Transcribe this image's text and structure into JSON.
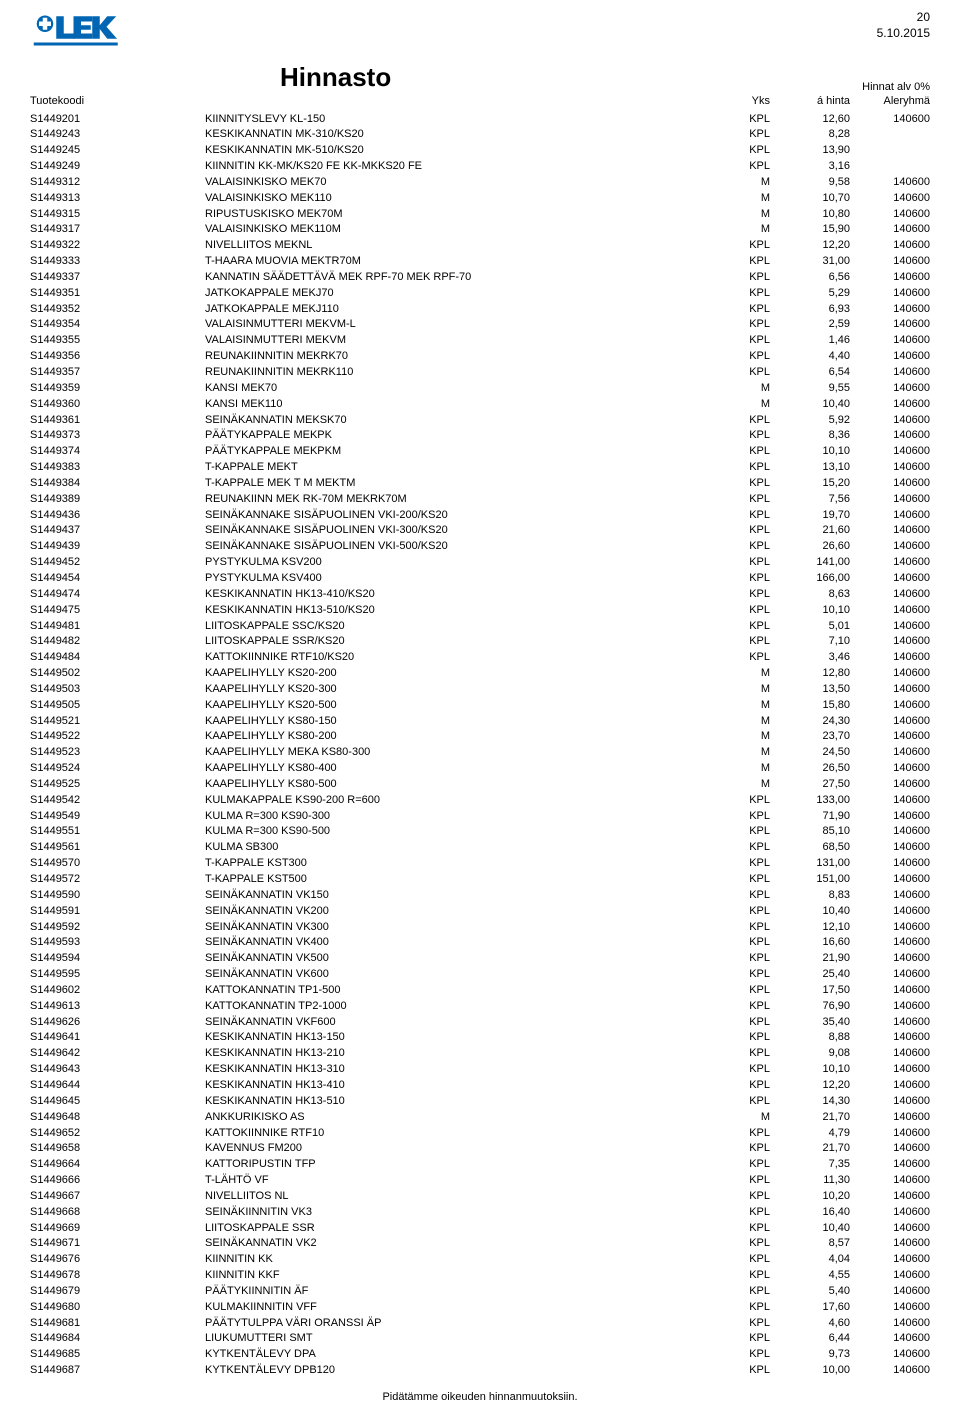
{
  "page_number": "20",
  "date": "5.10.2015",
  "title": "Hinnasto",
  "vat_note": "Hinnat alv 0%",
  "headers": {
    "tuotekoodi": "Tuotekoodi",
    "yks": "Yks",
    "hinta": "á hinta",
    "aleryhma": "Aleryhmä"
  },
  "footer": "Pidätämme oikeuden hinnanmuutoksiin.",
  "logo_color": "#0066b3",
  "rows": [
    {
      "code": "S1449201",
      "desc": "KIINNITYSLEVY KL-150",
      "yks": "KPL",
      "hinta": "12,60",
      "aler": "140600"
    },
    {
      "code": "S1449243",
      "desc": "KESKIKANNATIN MK-310/KS20",
      "yks": "KPL",
      "hinta": "8,28",
      "aler": ""
    },
    {
      "code": "S1449245",
      "desc": "KESKIKANNATIN MK-510/KS20",
      "yks": "KPL",
      "hinta": "13,90",
      "aler": ""
    },
    {
      "code": "S1449249",
      "desc": "KIINNITIN KK-MK/KS20 FE KK-MKKS20 FE",
      "yks": "KPL",
      "hinta": "3,16",
      "aler": ""
    },
    {
      "code": "S1449312",
      "desc": "VALAISINKISKO MEK70",
      "yks": "M",
      "hinta": "9,58",
      "aler": "140600"
    },
    {
      "code": "S1449313",
      "desc": "VALAISINKISKO MEK110",
      "yks": "M",
      "hinta": "10,70",
      "aler": "140600"
    },
    {
      "code": "S1449315",
      "desc": "RIPUSTUSKISKO MEK70M",
      "yks": "M",
      "hinta": "10,80",
      "aler": "140600"
    },
    {
      "code": "S1449317",
      "desc": "VALAISINKISKO MEK110M",
      "yks": "M",
      "hinta": "15,90",
      "aler": "140600"
    },
    {
      "code": "S1449322",
      "desc": "NIVELLIITOS MEKNL",
      "yks": "KPL",
      "hinta": "12,20",
      "aler": "140600"
    },
    {
      "code": "S1449333",
      "desc": "T-HAARA MUOVIA MEKTR70M",
      "yks": "KPL",
      "hinta": "31,00",
      "aler": "140600"
    },
    {
      "code": "S1449337",
      "desc": "KANNATIN SÄÄDETTÄVÄ MEK RPF-70 MEK RPF-70",
      "yks": "KPL",
      "hinta": "6,56",
      "aler": "140600"
    },
    {
      "code": "S1449351",
      "desc": "JATKOKAPPALE MEKJ70",
      "yks": "KPL",
      "hinta": "5,29",
      "aler": "140600"
    },
    {
      "code": "S1449352",
      "desc": "JATKOKAPPALE MEKJ110",
      "yks": "KPL",
      "hinta": "6,93",
      "aler": "140600"
    },
    {
      "code": "S1449354",
      "desc": "VALAISINMUTTERI MEKVM-L",
      "yks": "KPL",
      "hinta": "2,59",
      "aler": "140600"
    },
    {
      "code": "S1449355",
      "desc": "VALAISINMUTTERI MEKVM",
      "yks": "KPL",
      "hinta": "1,46",
      "aler": "140600"
    },
    {
      "code": "S1449356",
      "desc": "REUNAKIINNITIN MEKRK70",
      "yks": "KPL",
      "hinta": "4,40",
      "aler": "140600"
    },
    {
      "code": "S1449357",
      "desc": "REUNAKIINNITIN MEKRK110",
      "yks": "KPL",
      "hinta": "6,54",
      "aler": "140600"
    },
    {
      "code": "S1449359",
      "desc": "KANSI MEK70",
      "yks": "M",
      "hinta": "9,55",
      "aler": "140600"
    },
    {
      "code": "S1449360",
      "desc": "KANSI MEK110",
      "yks": "M",
      "hinta": "10,40",
      "aler": "140600"
    },
    {
      "code": "S1449361",
      "desc": "SEINÄKANNATIN MEKSK70",
      "yks": "KPL",
      "hinta": "5,92",
      "aler": "140600"
    },
    {
      "code": "S1449373",
      "desc": "PÄÄTYKAPPALE MEKPK",
      "yks": "KPL",
      "hinta": "8,36",
      "aler": "140600"
    },
    {
      "code": "S1449374",
      "desc": "PÄÄTYKAPPALE MEKPKM",
      "yks": "KPL",
      "hinta": "10,10",
      "aler": "140600"
    },
    {
      "code": "S1449383",
      "desc": "T-KAPPALE MEKT",
      "yks": "KPL",
      "hinta": "13,10",
      "aler": "140600"
    },
    {
      "code": "S1449384",
      "desc": "T-KAPPALE MEK T M MEKTM",
      "yks": "KPL",
      "hinta": "15,20",
      "aler": "140600"
    },
    {
      "code": "S1449389",
      "desc": "REUNAKIINN MEK RK-70M MEKRK70M",
      "yks": "KPL",
      "hinta": "7,56",
      "aler": "140600"
    },
    {
      "code": "S1449436",
      "desc": "SEINÄKANNAKE SISÄPUOLINEN VKI-200/KS20",
      "yks": "KPL",
      "hinta": "19,70",
      "aler": "140600"
    },
    {
      "code": "S1449437",
      "desc": "SEINÄKANNAKE SISÄPUOLINEN VKI-300/KS20",
      "yks": "KPL",
      "hinta": "21,60",
      "aler": "140600"
    },
    {
      "code": "S1449439",
      "desc": "SEINÄKANNAKE SISÄPUOLINEN VKI-500/KS20",
      "yks": "KPL",
      "hinta": "26,60",
      "aler": "140600"
    },
    {
      "code": "S1449452",
      "desc": "PYSTYKULMA KSV200",
      "yks": "KPL",
      "hinta": "141,00",
      "aler": "140600"
    },
    {
      "code": "S1449454",
      "desc": "PYSTYKULMA KSV400",
      "yks": "KPL",
      "hinta": "166,00",
      "aler": "140600"
    },
    {
      "code": "S1449474",
      "desc": "KESKIKANNATIN HK13-410/KS20",
      "yks": "KPL",
      "hinta": "8,63",
      "aler": "140600"
    },
    {
      "code": "S1449475",
      "desc": "KESKIKANNATIN HK13-510/KS20",
      "yks": "KPL",
      "hinta": "10,10",
      "aler": "140600"
    },
    {
      "code": "S1449481",
      "desc": "LIITOSKAPPALE SSC/KS20",
      "yks": "KPL",
      "hinta": "5,01",
      "aler": "140600"
    },
    {
      "code": "S1449482",
      "desc": "LIITOSKAPPALE SSR/KS20",
      "yks": "KPL",
      "hinta": "7,10",
      "aler": "140600"
    },
    {
      "code": "S1449484",
      "desc": "KATTOKIINNIKE RTF10/KS20",
      "yks": "KPL",
      "hinta": "3,46",
      "aler": "140600"
    },
    {
      "code": "S1449502",
      "desc": "KAAPELIHYLLY KS20-200",
      "yks": "M",
      "hinta": "12,80",
      "aler": "140600"
    },
    {
      "code": "S1449503",
      "desc": "KAAPELIHYLLY KS20-300",
      "yks": "M",
      "hinta": "13,50",
      "aler": "140600"
    },
    {
      "code": "S1449505",
      "desc": "KAAPELIHYLLY KS20-500",
      "yks": "M",
      "hinta": "15,80",
      "aler": "140600"
    },
    {
      "code": "S1449521",
      "desc": "KAAPELIHYLLY KS80-150",
      "yks": "M",
      "hinta": "24,30",
      "aler": "140600"
    },
    {
      "code": "S1449522",
      "desc": "KAAPELIHYLLY KS80-200",
      "yks": "M",
      "hinta": "23,70",
      "aler": "140600"
    },
    {
      "code": "S1449523",
      "desc": "KAAPELIHYLLY MEKA KS80-300",
      "yks": "M",
      "hinta": "24,50",
      "aler": "140600"
    },
    {
      "code": "S1449524",
      "desc": "KAAPELIHYLLY KS80-400",
      "yks": "M",
      "hinta": "26,50",
      "aler": "140600"
    },
    {
      "code": "S1449525",
      "desc": "KAAPELIHYLLY KS80-500",
      "yks": "M",
      "hinta": "27,50",
      "aler": "140600"
    },
    {
      "code": "S1449542",
      "desc": "KULMAKAPPALE KS90-200 R=600",
      "yks": "KPL",
      "hinta": "133,00",
      "aler": "140600"
    },
    {
      "code": "S1449549",
      "desc": "KULMA R=300 KS90-300",
      "yks": "KPL",
      "hinta": "71,90",
      "aler": "140600"
    },
    {
      "code": "S1449551",
      "desc": "KULMA R=300 KS90-500",
      "yks": "KPL",
      "hinta": "85,10",
      "aler": "140600"
    },
    {
      "code": "S1449561",
      "desc": "KULMA SB300",
      "yks": "KPL",
      "hinta": "68,50",
      "aler": "140600"
    },
    {
      "code": "S1449570",
      "desc": "T-KAPPALE KST300",
      "yks": "KPL",
      "hinta": "131,00",
      "aler": "140600"
    },
    {
      "code": "S1449572",
      "desc": "T-KAPPALE KST500",
      "yks": "KPL",
      "hinta": "151,00",
      "aler": "140600"
    },
    {
      "code": "S1449590",
      "desc": "SEINÄKANNATIN VK150",
      "yks": "KPL",
      "hinta": "8,83",
      "aler": "140600"
    },
    {
      "code": "S1449591",
      "desc": "SEINÄKANNATIN VK200",
      "yks": "KPL",
      "hinta": "10,40",
      "aler": "140600"
    },
    {
      "code": "S1449592",
      "desc": "SEINÄKANNATIN VK300",
      "yks": "KPL",
      "hinta": "12,10",
      "aler": "140600"
    },
    {
      "code": "S1449593",
      "desc": "SEINÄKANNATIN VK400",
      "yks": "KPL",
      "hinta": "16,60",
      "aler": "140600"
    },
    {
      "code": "S1449594",
      "desc": "SEINÄKANNATIN VK500",
      "yks": "KPL",
      "hinta": "21,90",
      "aler": "140600"
    },
    {
      "code": "S1449595",
      "desc": "SEINÄKANNATIN VK600",
      "yks": "KPL",
      "hinta": "25,40",
      "aler": "140600"
    },
    {
      "code": "S1449602",
      "desc": "KATTOKANNATIN TP1-500",
      "yks": "KPL",
      "hinta": "17,50",
      "aler": "140600"
    },
    {
      "code": "S1449613",
      "desc": "KATTOKANNATIN TP2-1000",
      "yks": "KPL",
      "hinta": "76,90",
      "aler": "140600"
    },
    {
      "code": "S1449626",
      "desc": "SEINÄKANNATIN VKF600",
      "yks": "KPL",
      "hinta": "35,40",
      "aler": "140600"
    },
    {
      "code": "S1449641",
      "desc": "KESKIKANNATIN HK13-150",
      "yks": "KPL",
      "hinta": "8,88",
      "aler": "140600"
    },
    {
      "code": "S1449642",
      "desc": "KESKIKANNATIN HK13-210",
      "yks": "KPL",
      "hinta": "9,08",
      "aler": "140600"
    },
    {
      "code": "S1449643",
      "desc": "KESKIKANNATIN HK13-310",
      "yks": "KPL",
      "hinta": "10,10",
      "aler": "140600"
    },
    {
      "code": "S1449644",
      "desc": "KESKIKANNATIN HK13-410",
      "yks": "KPL",
      "hinta": "12,20",
      "aler": "140600"
    },
    {
      "code": "S1449645",
      "desc": "KESKIKANNATIN HK13-510",
      "yks": "KPL",
      "hinta": "14,30",
      "aler": "140600"
    },
    {
      "code": "S1449648",
      "desc": "ANKKURIKISKO AS",
      "yks": "M",
      "hinta": "21,70",
      "aler": "140600"
    },
    {
      "code": "S1449652",
      "desc": "KATTOKIINNIKE RTF10",
      "yks": "KPL",
      "hinta": "4,79",
      "aler": "140600"
    },
    {
      "code": "S1449658",
      "desc": "KAVENNUS FM200",
      "yks": "KPL",
      "hinta": "21,70",
      "aler": "140600"
    },
    {
      "code": "S1449664",
      "desc": "KATTORIPUSTIN TFP",
      "yks": "KPL",
      "hinta": "7,35",
      "aler": "140600"
    },
    {
      "code": "S1449666",
      "desc": "T-LÄHTÖ VF",
      "yks": "KPL",
      "hinta": "11,30",
      "aler": "140600"
    },
    {
      "code": "S1449667",
      "desc": "NIVELLIITOS NL",
      "yks": "KPL",
      "hinta": "10,20",
      "aler": "140600"
    },
    {
      "code": "S1449668",
      "desc": "SEINÄKIINNITIN VK3",
      "yks": "KPL",
      "hinta": "16,40",
      "aler": "140600"
    },
    {
      "code": "S1449669",
      "desc": "LIITOSKAPPALE SSR",
      "yks": "KPL",
      "hinta": "10,40",
      "aler": "140600"
    },
    {
      "code": "S1449671",
      "desc": "SEINÄKANNATIN VK2",
      "yks": "KPL",
      "hinta": "8,57",
      "aler": "140600"
    },
    {
      "code": "S1449676",
      "desc": "KIINNITIN KK",
      "yks": "KPL",
      "hinta": "4,04",
      "aler": "140600"
    },
    {
      "code": "S1449678",
      "desc": "KIINNITIN KKF",
      "yks": "KPL",
      "hinta": "4,55",
      "aler": "140600"
    },
    {
      "code": "S1449679",
      "desc": "PÄÄTYKIINNITIN ÄF",
      "yks": "KPL",
      "hinta": "5,40",
      "aler": "140600"
    },
    {
      "code": "S1449680",
      "desc": "KULMAKIINNITIN VFF",
      "yks": "KPL",
      "hinta": "17,60",
      "aler": "140600"
    },
    {
      "code": "S1449681",
      "desc": "PÄÄTYTULPPA VÄRI ORANSSI ÄP",
      "yks": "KPL",
      "hinta": "4,60",
      "aler": "140600"
    },
    {
      "code": "S1449684",
      "desc": "LIUKUMUTTERI SMT",
      "yks": "KPL",
      "hinta": "6,44",
      "aler": "140600"
    },
    {
      "code": "S1449685",
      "desc": "KYTKENTÄLEVY DPA",
      "yks": "KPL",
      "hinta": "9,73",
      "aler": "140600"
    },
    {
      "code": "S1449687",
      "desc": "KYTKENTÄLEVY DPB120",
      "yks": "KPL",
      "hinta": "10,00",
      "aler": "140600"
    }
  ]
}
